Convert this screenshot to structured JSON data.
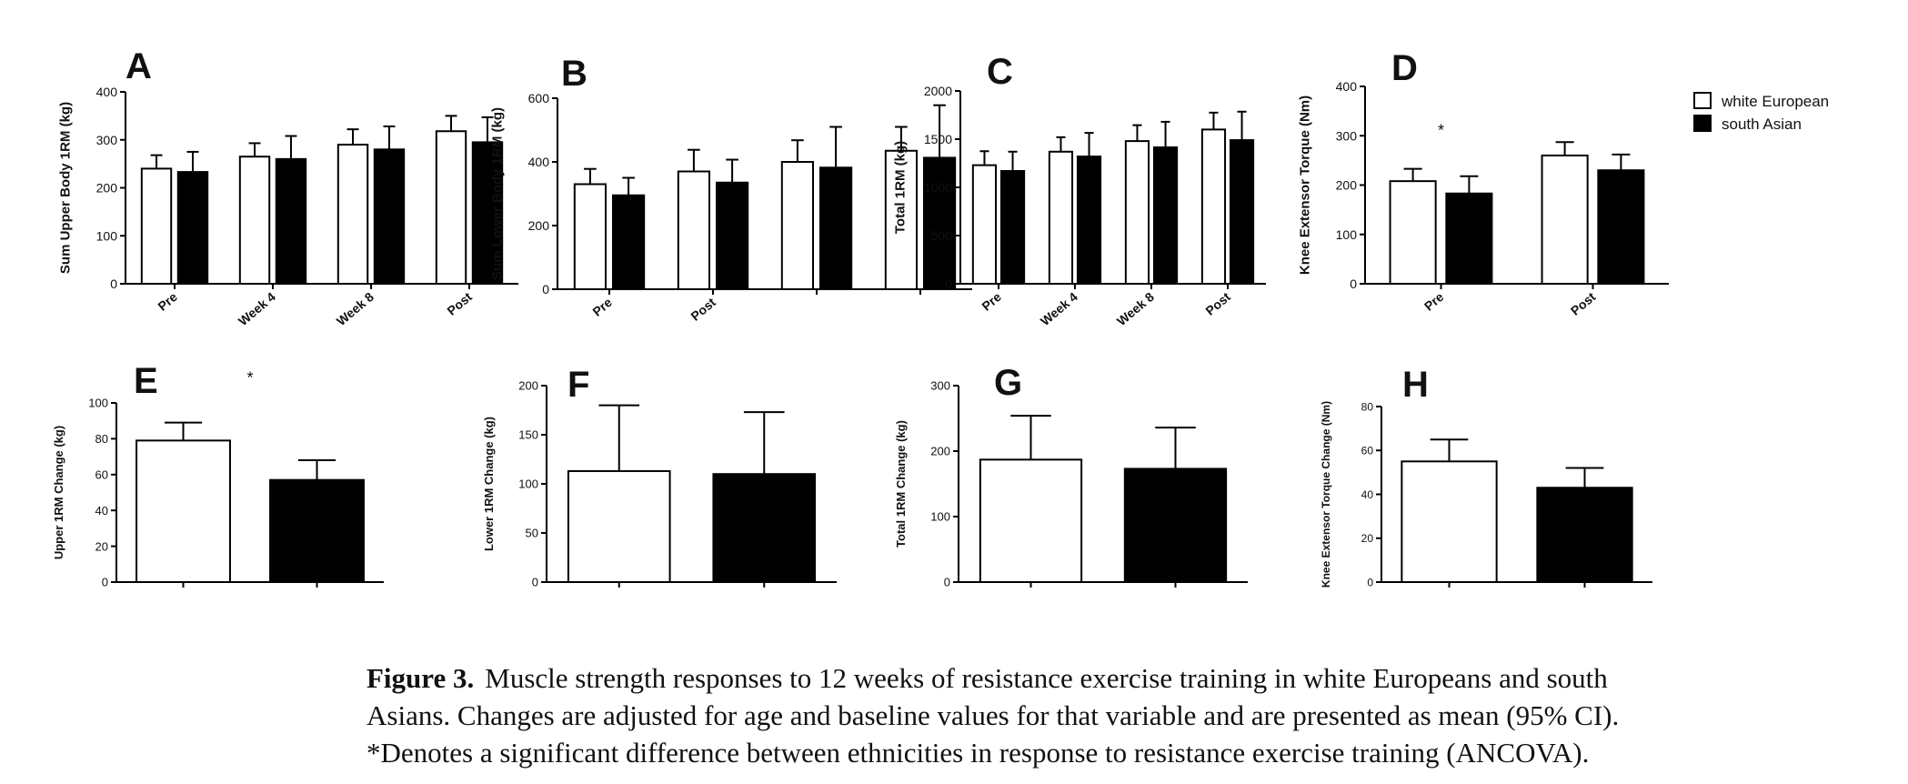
{
  "legend": {
    "items": [
      {
        "label": "white European",
        "fill": "#ffffff"
      },
      {
        "label": "south Asian",
        "fill": "#000000"
      }
    ]
  },
  "caption": {
    "label": "Figure 3.",
    "line1": "Muscle strength responses to 12 weeks of resistance exercise training in white Europeans and south",
    "line2": "Asians. Changes are adjusted for age and baseline values for that variable and are presented as mean (95% CI).",
    "line3": "*Denotes a significant difference between ethnicities in response to resistance exercise training (ANCOVA)."
  },
  "chart_data": [
    {
      "panel": "A",
      "type": "bar",
      "ylabel": "Sum  Upper Body 1RM  (kg)",
      "ylim": [
        0,
        400
      ],
      "yticks": [
        0,
        100,
        200,
        300,
        400
      ],
      "categories": [
        "Pre",
        "Week 4",
        "Week 8",
        "Post"
      ],
      "series": [
        {
          "name": "white European",
          "values": [
            240,
            265,
            290,
            318
          ],
          "error": [
            28,
            28,
            32,
            32
          ]
        },
        {
          "name": "south Asian",
          "values": [
            233,
            260,
            280,
            295
          ],
          "error": [
            42,
            48,
            48,
            52
          ]
        }
      ],
      "annotations": []
    },
    {
      "panel": "B",
      "type": "bar",
      "ylabel": "Sum Lower Body 1RM  (kg)",
      "ylim": [
        0,
        600
      ],
      "yticks": [
        0,
        200,
        400,
        600
      ],
      "categories": [
        "Pre",
        "Post",
        "",
        ""
      ],
      "series": [
        {
          "name": "white European",
          "values": [
            330,
            370,
            400,
            435
          ],
          "error": [
            48,
            68,
            68,
            75
          ]
        },
        {
          "name": "south Asian",
          "values": [
            295,
            335,
            382,
            413
          ],
          "error": [
            55,
            72,
            128,
            165
          ]
        }
      ],
      "annotations": []
    },
    {
      "panel": "C",
      "type": "bar",
      "ylabel": "Total 1RM  (kg)",
      "ylim": [
        0,
        2000
      ],
      "yticks": [
        0,
        500,
        1000,
        1500,
        2000
      ],
      "categories": [
        "Pre",
        "Week 4",
        "Week 8",
        "Post"
      ],
      "series": [
        {
          "name": "white European",
          "values": [
            1230,
            1370,
            1480,
            1600
          ],
          "error": [
            145,
            150,
            165,
            175
          ]
        },
        {
          "name": "south Asian",
          "values": [
            1170,
            1320,
            1415,
            1490
          ],
          "error": [
            200,
            245,
            265,
            295
          ]
        }
      ],
      "annotations": []
    },
    {
      "panel": "D",
      "type": "bar",
      "ylabel": "Knee Extensor Torque (Nm)",
      "ylim": [
        0,
        400
      ],
      "yticks": [
        0,
        100,
        200,
        300,
        400
      ],
      "categories": [
        "Pre",
        "Post"
      ],
      "series": [
        {
          "name": "white European",
          "values": [
            208,
            260
          ],
          "error": [
            25,
            27
          ]
        },
        {
          "name": "south Asian",
          "values": [
            183,
            230
          ],
          "error": [
            35,
            32
          ]
        }
      ],
      "annotations": [
        {
          "text": "*",
          "category": 0,
          "y": 300
        }
      ]
    },
    {
      "panel": "E",
      "type": "bar",
      "ylabel": "Upper 1RM Change (kg)",
      "ylim": [
        0,
        100
      ],
      "yticks": [
        0,
        20,
        40,
        60,
        80,
        100
      ],
      "categories": [
        "",
        ""
      ],
      "series": [
        {
          "name": "white European",
          "values": [
            79,
            57
          ],
          "error": [
            10,
            11
          ]
        }
      ],
      "annotations": [
        {
          "text": "*",
          "category": 0.5,
          "y": 111
        }
      ]
    },
    {
      "panel": "F",
      "type": "bar",
      "ylabel": "Lower 1RM Change (kg)",
      "ylim": [
        0,
        200
      ],
      "yticks": [
        0,
        50,
        100,
        150,
        200
      ],
      "categories": [
        "",
        ""
      ],
      "series": [
        {
          "name": "white European",
          "values": [
            113,
            110
          ],
          "error": [
            67,
            63
          ]
        }
      ],
      "annotations": []
    },
    {
      "panel": "G",
      "type": "bar",
      "ylabel": "Total 1RM Change (kg)",
      "ylim": [
        0,
        300
      ],
      "yticks": [
        0,
        100,
        200,
        300
      ],
      "categories": [
        "",
        ""
      ],
      "series": [
        {
          "name": "white European",
          "values": [
            187,
            173
          ],
          "error": [
            67,
            63
          ]
        }
      ],
      "annotations": []
    },
    {
      "panel": "H",
      "type": "bar",
      "ylabel": "Knee Extensor Torque Change (Nm)",
      "ylim": [
        0,
        80
      ],
      "yticks": [
        0,
        20,
        40,
        60,
        80
      ],
      "categories": [
        "",
        ""
      ],
      "series": [
        {
          "name": "white European",
          "values": [
            55,
            43
          ],
          "error": [
            10,
            9
          ]
        }
      ],
      "annotations": []
    }
  ]
}
